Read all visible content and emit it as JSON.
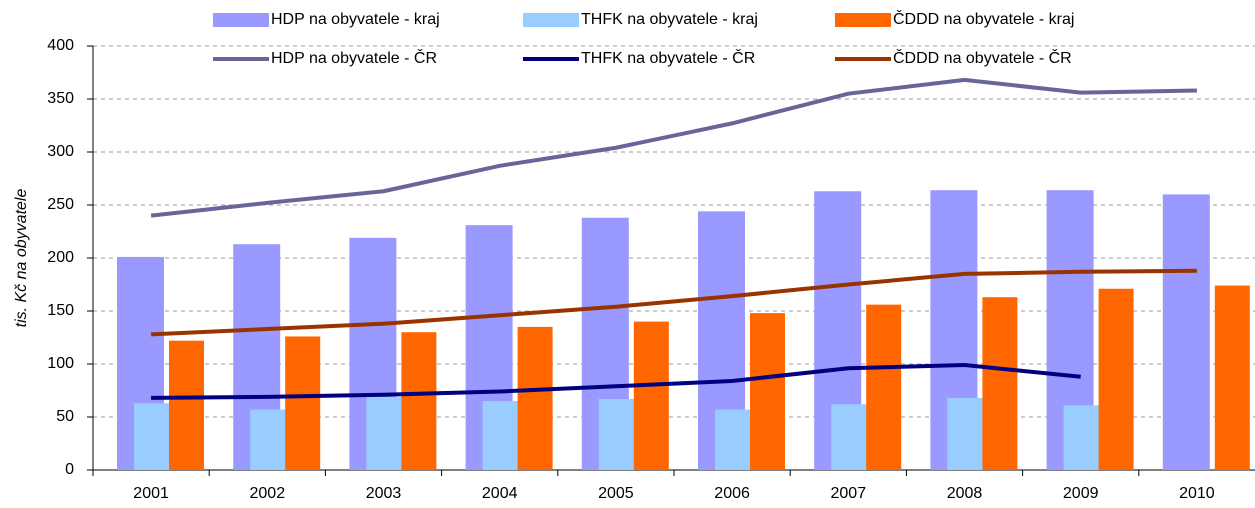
{
  "chart_data": {
    "type": "bar_line",
    "y_label": "tis. Kč na obyvatele",
    "categories": [
      "2001",
      "2002",
      "2003",
      "2004",
      "2005",
      "2006",
      "2007",
      "2008",
      "2009",
      "2010"
    ],
    "ylim": [
      0,
      400
    ],
    "yticks": [
      0,
      50,
      100,
      150,
      200,
      250,
      300,
      350,
      400
    ],
    "grid": true,
    "legend": "top",
    "series": [
      {
        "name": "HDP na obyvatele - kraj",
        "kind": "bar",
        "color": "#9999ff",
        "values": [
          201,
          213,
          219,
          231,
          238,
          244,
          263,
          264,
          264,
          260
        ]
      },
      {
        "name": "THFK na obyvatele - kraj",
        "kind": "bar",
        "color": "#99ccff",
        "values": [
          63,
          57,
          69,
          65,
          67,
          57,
          62,
          68,
          61,
          null
        ]
      },
      {
        "name": "ČDDD na obyvatele - kraj",
        "kind": "bar",
        "color": "#ff6600",
        "values": [
          122,
          126,
          130,
          135,
          140,
          148,
          156,
          163,
          171,
          174
        ]
      },
      {
        "name": "HDP na obyvatele - ČR",
        "kind": "line",
        "color": "#666699",
        "values": [
          240,
          252,
          263,
          287,
          304,
          327,
          355,
          368,
          356,
          358
        ]
      },
      {
        "name": "THFK na obyvatele - ČR",
        "kind": "line",
        "color": "#000080",
        "values": [
          68,
          69,
          71,
          74,
          79,
          84,
          96,
          99,
          88,
          null
        ]
      },
      {
        "name": "ČDDD na obyvatele - ČR",
        "kind": "line",
        "color": "#993300",
        "values": [
          128,
          133,
          138,
          146,
          154,
          164,
          175,
          185,
          187,
          188
        ]
      }
    ]
  }
}
